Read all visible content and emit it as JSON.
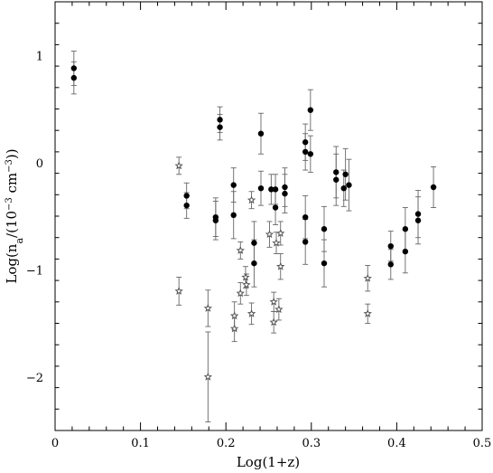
{
  "chart_data": {
    "type": "scatter",
    "xlabel": "Log(1+z)",
    "ylabel_parts": {
      "main": "Log(n",
      "sub": "a",
      "mid": "/(10",
      "sup": "−3",
      "unit": " cm",
      "sup2": "−3",
      "end": "))"
    },
    "xlim": [
      0,
      0.5
    ],
    "ylim": [
      -2.5,
      1.5
    ],
    "x_ticks": [
      0,
      0.1,
      0.2,
      0.3,
      0.4,
      0.5
    ],
    "x_tick_labels": [
      "0",
      "0.1",
      "0.2",
      "0.3",
      "0.4",
      "0.5"
    ],
    "y_ticks": [
      1,
      0,
      -1,
      -2
    ],
    "y_tick_labels": [
      "1",
      "0",
      "−1",
      "−2"
    ],
    "grid": false,
    "series": [
      {
        "marker": "filled-circle",
        "color": "#000000",
        "points": [
          {
            "x": 0.022,
            "y": 0.88,
            "err": 0.16
          },
          {
            "x": 0.022,
            "y": 0.79,
            "err": 0.15
          },
          {
            "x": 0.154,
            "y": -0.31,
            "err": 0.12
          },
          {
            "x": 0.154,
            "y": -0.4,
            "err": 0.12
          },
          {
            "x": 0.188,
            "y": -0.51,
            "err": 0.18
          },
          {
            "x": 0.188,
            "y": -0.54,
            "err": 0.18
          },
          {
            "x": 0.193,
            "y": 0.4,
            "err": 0.12
          },
          {
            "x": 0.193,
            "y": 0.33,
            "err": 0.12
          },
          {
            "x": 0.209,
            "y": -0.21,
            "err": 0.16
          },
          {
            "x": 0.209,
            "y": -0.49,
            "err": 0.22
          },
          {
            "x": 0.233,
            "y": -0.75,
            "err": 0.2
          },
          {
            "x": 0.233,
            "y": -0.94,
            "err": 0.22
          },
          {
            "x": 0.241,
            "y": 0.27,
            "err": 0.19
          },
          {
            "x": 0.241,
            "y": -0.24,
            "err": 0.16
          },
          {
            "x": 0.253,
            "y": -0.25,
            "err": 0.14
          },
          {
            "x": 0.258,
            "y": -0.25,
            "err": 0.14
          },
          {
            "x": 0.258,
            "y": -0.42,
            "err": 0.16
          },
          {
            "x": 0.269,
            "y": -0.23,
            "err": 0.18
          },
          {
            "x": 0.269,
            "y": -0.29,
            "err": 0.18
          },
          {
            "x": 0.293,
            "y": 0.19,
            "err": 0.17
          },
          {
            "x": 0.293,
            "y": 0.1,
            "err": 0.17
          },
          {
            "x": 0.293,
            "y": -0.51,
            "err": 0.2
          },
          {
            "x": 0.293,
            "y": -0.74,
            "err": 0.21
          },
          {
            "x": 0.299,
            "y": 0.49,
            "err": 0.19
          },
          {
            "x": 0.299,
            "y": 0.08,
            "err": 0.17
          },
          {
            "x": 0.315,
            "y": -0.62,
            "err": 0.21
          },
          {
            "x": 0.315,
            "y": -0.94,
            "err": 0.22
          },
          {
            "x": 0.329,
            "y": -0.09,
            "err": 0.24
          },
          {
            "x": 0.329,
            "y": -0.16,
            "err": 0.24
          },
          {
            "x": 0.338,
            "y": -0.24,
            "err": 0.17
          },
          {
            "x": 0.34,
            "y": -0.11,
            "err": 0.24
          },
          {
            "x": 0.344,
            "y": -0.21,
            "err": 0.24
          },
          {
            "x": 0.393,
            "y": -0.78,
            "err": 0.14
          },
          {
            "x": 0.393,
            "y": -0.95,
            "err": 0.14
          },
          {
            "x": 0.41,
            "y": -0.62,
            "err": 0.2
          },
          {
            "x": 0.41,
            "y": -0.83,
            "err": 0.2
          },
          {
            "x": 0.425,
            "y": -0.48,
            "err": 0.22
          },
          {
            "x": 0.425,
            "y": -0.54,
            "err": 0.22
          },
          {
            "x": 0.443,
            "y": -0.23,
            "err": 0.19
          }
        ]
      },
      {
        "marker": "open-star",
        "color": "#555555",
        "points": [
          {
            "x": 0.145,
            "y": -0.03,
            "err": 0.08
          },
          {
            "x": 0.145,
            "y": -1.2,
            "err": 0.13
          },
          {
            "x": 0.179,
            "y": -1.36,
            "err": 0.17
          },
          {
            "x": 0.179,
            "y": -2.0,
            "err": 0.42
          },
          {
            "x": 0.21,
            "y": -1.43,
            "err": 0.13
          },
          {
            "x": 0.21,
            "y": -1.55,
            "err": 0.12
          },
          {
            "x": 0.217,
            "y": -0.82,
            "err": 0.08
          },
          {
            "x": 0.217,
            "y": -1.22,
            "err": 0.1
          },
          {
            "x": 0.223,
            "y": -1.07,
            "err": 0.1
          },
          {
            "x": 0.224,
            "y": -1.14,
            "err": 0.1
          },
          {
            "x": 0.23,
            "y": -0.35,
            "err": 0.08
          },
          {
            "x": 0.23,
            "y": -1.41,
            "err": 0.1
          },
          {
            "x": 0.251,
            "y": -0.67,
            "err": 0.12
          },
          {
            "x": 0.256,
            "y": -1.3,
            "err": 0.09
          },
          {
            "x": 0.256,
            "y": -1.49,
            "err": 0.1
          },
          {
            "x": 0.259,
            "y": -0.75,
            "err": 0.1
          },
          {
            "x": 0.262,
            "y": -1.37,
            "err": 0.1
          },
          {
            "x": 0.264,
            "y": -0.66,
            "err": 0.11
          },
          {
            "x": 0.264,
            "y": -0.97,
            "err": 0.12
          },
          {
            "x": 0.366,
            "y": -1.08,
            "err": 0.12
          },
          {
            "x": 0.366,
            "y": -1.41,
            "err": 0.09
          }
        ]
      }
    ]
  }
}
